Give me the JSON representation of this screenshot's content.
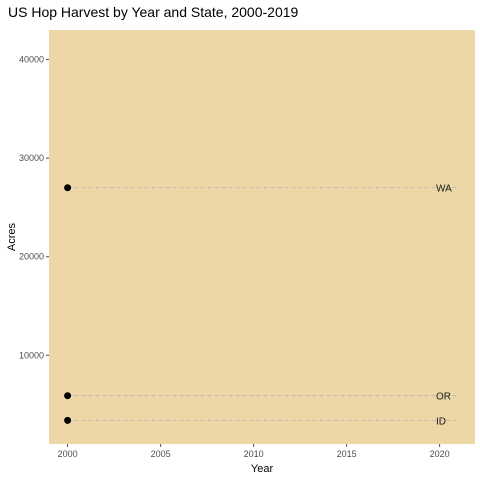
{
  "chart_data": {
    "type": "scatter",
    "title": "US Hop Harvest by Year and State, 2000-2019",
    "xlabel": "Year",
    "ylabel": "Acres",
    "xlim": [
      1999,
      2021.9
    ],
    "ylim": [
      1000,
      43000
    ],
    "x_ticks": [
      2000,
      2005,
      2010,
      2015,
      2020
    ],
    "y_ticks": [
      10000,
      20000,
      30000,
      40000
    ],
    "grid": false,
    "legend": "none",
    "colors": {
      "panel_background": "#eed7a6",
      "point": "#000000",
      "reference_line": "#b3b3b3",
      "tick": "#4d4d4d"
    },
    "series": [
      {
        "name": "WA",
        "x": [
          2000
        ],
        "y": [
          27000
        ]
      },
      {
        "name": "OR",
        "x": [
          2000
        ],
        "y": [
          5900
        ]
      },
      {
        "name": "ID",
        "x": [
          2000
        ],
        "y": [
          3400
        ]
      }
    ]
  }
}
